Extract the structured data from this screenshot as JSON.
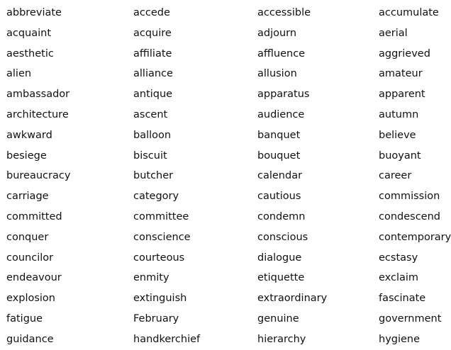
{
  "table": {
    "rows": [
      [
        "abbreviate",
        "accede",
        "accessible",
        "accumulate"
      ],
      [
        "acquaint",
        "acquire",
        "adjourn",
        "aerial"
      ],
      [
        "aesthetic",
        "affiliate",
        "affluence",
        "aggrieved"
      ],
      [
        "alien",
        "alliance",
        "allusion",
        "amateur"
      ],
      [
        "ambassador",
        "antique",
        "apparatus",
        "apparent"
      ],
      [
        "architecture",
        "ascent",
        "audience",
        "autumn"
      ],
      [
        "awkward",
        "balloon",
        "banquet",
        "believe"
      ],
      [
        "besiege",
        "biscuit",
        "bouquet",
        "buoyant"
      ],
      [
        "bureaucracy",
        "butcher",
        "calendar",
        "career"
      ],
      [
        "carriage",
        "category",
        "cautious",
        "commission"
      ],
      [
        "committed",
        "committee",
        "condemn",
        "condescend"
      ],
      [
        "conquer",
        "conscience",
        "conscious",
        "contemporary"
      ],
      [
        "councilor",
        "courteous",
        "dialogue",
        "ecstasy"
      ],
      [
        "endeavour",
        "enmity",
        "etiquette",
        "exclaim"
      ],
      [
        "explosion",
        "extinguish",
        "extraordinary",
        "fascinate"
      ],
      [
        "fatigue",
        "February",
        "genuine",
        "government"
      ],
      [
        "guidance",
        "handkerchief",
        "hierarchy",
        "hygiene"
      ]
    ]
  }
}
